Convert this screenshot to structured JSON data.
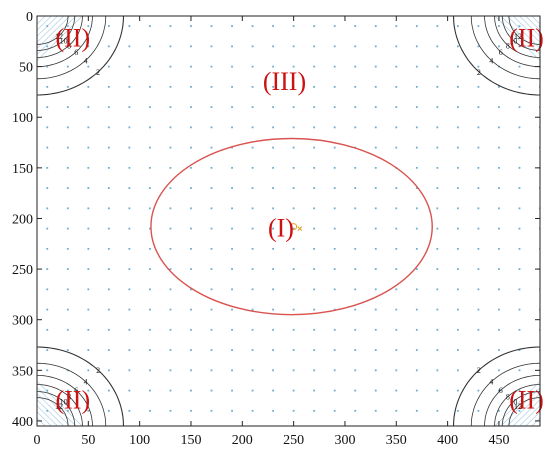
{
  "chart_data": {
    "type": "contour",
    "xlim": [
      0,
      490
    ],
    "ylim": [
      0,
      405
    ],
    "y_axis_reversed": true,
    "x_ticks": [
      0,
      50,
      100,
      150,
      200,
      250,
      300,
      350,
      400,
      450
    ],
    "y_ticks": [
      0,
      50,
      100,
      150,
      200,
      250,
      300,
      350,
      400
    ],
    "grid": false,
    "field_markers": {
      "type": "scatter-grid",
      "x_spacing": 20,
      "y_spacing": 20,
      "color": "#6aaed0"
    },
    "region_I_ellipse": {
      "center": [
        248,
        208
      ],
      "radii": [
        137,
        87
      ],
      "color": "#d9534f"
    },
    "center_markers": [
      {
        "symbol": "o",
        "x": 250,
        "y": 208,
        "color": "#e0a020"
      },
      {
        "symbol": "x",
        "x": 256,
        "y": 210,
        "color": "#e0a020"
      }
    ],
    "contour_levels": [
      "2",
      "4",
      "6",
      "8",
      "10",
      "12"
    ],
    "region_labels": [
      {
        "text": "(I)",
        "x": 225,
        "y": 210
      },
      {
        "text": "(II)",
        "x": 18,
        "y": 22
      },
      {
        "text": "(II)",
        "x": 460,
        "y": 22
      },
      {
        "text": "(II)",
        "x": 18,
        "y": 380
      },
      {
        "text": "(II)",
        "x": 460,
        "y": 380
      },
      {
        "text": "(III)",
        "x": 220,
        "y": 65
      }
    ],
    "label_color": "#cc1111"
  }
}
